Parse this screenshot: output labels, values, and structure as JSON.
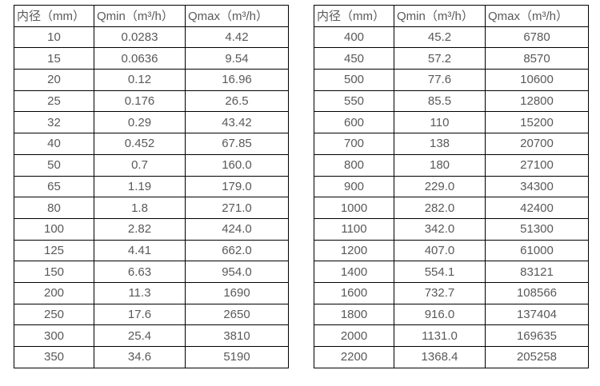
{
  "tables": [
    {
      "headers": [
        "内径（mm）",
        "Qmin（m³/h）",
        "Qmax（m³/h）"
      ],
      "rows": [
        [
          "10",
          "0.0283",
          "4.42"
        ],
        [
          "15",
          "0.0636",
          "9.54"
        ],
        [
          "20",
          "0.12",
          "16.96"
        ],
        [
          "25",
          "0.176",
          "26.5"
        ],
        [
          "32",
          "0.29",
          "43.42"
        ],
        [
          "40",
          "0.452",
          "67.85"
        ],
        [
          "50",
          "0.7",
          "160.0"
        ],
        [
          "65",
          "1.19",
          "179.0"
        ],
        [
          "80",
          "1.8",
          "271.0"
        ],
        [
          "100",
          "2.82",
          "424.0"
        ],
        [
          "125",
          "4.41",
          "662.0"
        ],
        [
          "150",
          "6.63",
          "954.0"
        ],
        [
          "200",
          "11.3",
          "1690"
        ],
        [
          "250",
          "17.6",
          "2650"
        ],
        [
          "300",
          "25.4",
          "3810"
        ],
        [
          "350",
          "34.6",
          "5190"
        ]
      ]
    },
    {
      "headers": [
        "内径（mm）",
        "Qmin（m³/h）",
        "Qmax（m³/h）"
      ],
      "rows": [
        [
          "400",
          "45.2",
          "6780"
        ],
        [
          "450",
          "57.2",
          "8570"
        ],
        [
          "500",
          "77.6",
          "10600"
        ],
        [
          "550",
          "85.5",
          "12800"
        ],
        [
          "600",
          "110",
          "15200"
        ],
        [
          "700",
          "138",
          "20700"
        ],
        [
          "800",
          "180",
          "27100"
        ],
        [
          "900",
          "229.0",
          "34300"
        ],
        [
          "1000",
          "282.0",
          "42400"
        ],
        [
          "1100",
          "342.0",
          "51300"
        ],
        [
          "1200",
          "407.0",
          "61000"
        ],
        [
          "1400",
          "554.1",
          "83121"
        ],
        [
          "1600",
          "732.7",
          "108566"
        ],
        [
          "1800",
          "916.0",
          "137404"
        ],
        [
          "2000",
          "1131.0",
          "169635"
        ],
        [
          "2200",
          "1368.4",
          "205258"
        ]
      ]
    }
  ],
  "colors": {
    "text": "#595959",
    "border": "#000000",
    "background": "#ffffff"
  }
}
